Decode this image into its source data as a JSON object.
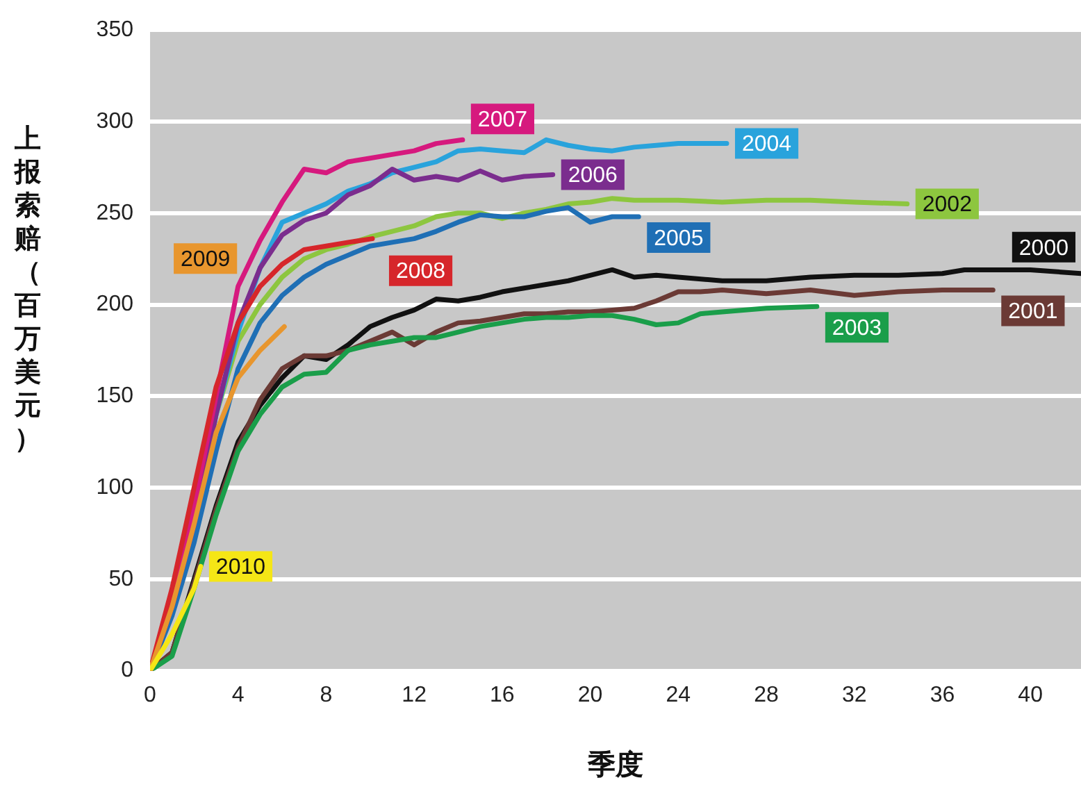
{
  "chart_data": {
    "type": "line",
    "xlabel": "季度",
    "ylabel": "上报索赔（百万美元）",
    "xlim": [
      0,
      42.3
    ],
    "xticks": [
      0,
      4,
      8,
      12,
      16,
      20,
      24,
      28,
      32,
      36,
      40
    ],
    "ylim": [
      0,
      350
    ],
    "yticks": [
      0,
      50,
      100,
      150,
      200,
      250,
      300,
      350
    ],
    "grid": "y",
    "line_style": "solid",
    "series": [
      {
        "name": "2000",
        "color": "#111111",
        "x": [
          0,
          1,
          2,
          3,
          4,
          5,
          6,
          7,
          8,
          9,
          10,
          11,
          12,
          13,
          14,
          15,
          16,
          17,
          18,
          19,
          20,
          21,
          22,
          23,
          24,
          26,
          28,
          30,
          32,
          34,
          36,
          37,
          38,
          40,
          42.3
        ],
        "values": [
          0,
          10,
          50,
          90,
          125,
          145,
          160,
          172,
          170,
          178,
          188,
          193,
          197,
          203,
          202,
          204,
          207,
          209,
          211,
          213,
          216,
          219,
          215,
          216,
          215,
          213,
          213,
          215,
          216,
          216,
          217,
          219,
          219,
          219,
          217
        ]
      },
      {
        "name": "2001",
        "color": "#6b3a35",
        "x": [
          0,
          1,
          2,
          3,
          4,
          5,
          6,
          7,
          8,
          9,
          10,
          11,
          12,
          13,
          14,
          15,
          16,
          17,
          18,
          19,
          20,
          21,
          22,
          23,
          24,
          25,
          26,
          28,
          30,
          32,
          34,
          36,
          38.3
        ],
        "values": [
          0,
          10,
          48,
          88,
          122,
          148,
          165,
          172,
          172,
          175,
          180,
          185,
          178,
          185,
          190,
          191,
          193,
          195,
          195,
          196,
          196,
          197,
          198,
          202,
          207,
          207,
          208,
          206,
          208,
          205,
          207,
          208,
          208
        ]
      },
      {
        "name": "2002",
        "color": "#8dc63f",
        "x": [
          0,
          1,
          2,
          3,
          4,
          5,
          6,
          7,
          8,
          9,
          10,
          11,
          12,
          13,
          14,
          15,
          16,
          17,
          18,
          19,
          20,
          21,
          22,
          24,
          26,
          28,
          30,
          32,
          34.4
        ],
        "values": [
          0,
          35,
          80,
          140,
          180,
          200,
          215,
          225,
          230,
          233,
          237,
          240,
          243,
          248,
          250,
          250,
          247,
          250,
          252,
          255,
          256,
          258,
          257,
          257,
          256,
          257,
          257,
          256,
          255
        ]
      },
      {
        "name": "2003",
        "color": "#1a9e4a",
        "x": [
          0,
          1,
          2,
          3,
          4,
          5,
          6,
          7,
          8,
          9,
          10,
          11,
          12,
          13,
          14,
          15,
          16,
          17,
          18,
          19,
          20,
          21,
          22,
          23,
          24,
          25,
          26,
          28,
          30.3
        ],
        "values": [
          0,
          8,
          45,
          85,
          120,
          140,
          155,
          162,
          163,
          175,
          178,
          180,
          182,
          182,
          185,
          188,
          190,
          192,
          193,
          193,
          194,
          194,
          192,
          189,
          190,
          195,
          196,
          198,
          199
        ]
      },
      {
        "name": "2004",
        "color": "#29a3dc",
        "x": [
          0,
          1,
          2,
          3,
          4,
          5,
          6,
          7,
          8,
          9,
          10,
          11,
          12,
          13,
          14,
          15,
          16,
          17,
          18,
          19,
          20,
          21,
          22,
          23,
          24,
          25,
          26.2
        ],
        "values": [
          0,
          35,
          80,
          140,
          185,
          220,
          245,
          250,
          255,
          262,
          266,
          272,
          275,
          278,
          284,
          285,
          284,
          283,
          290,
          287,
          285,
          284,
          286,
          287,
          288,
          288,
          288
        ]
      },
      {
        "name": "2005",
        "color": "#1f6fb5",
        "x": [
          0,
          1,
          2,
          3,
          4,
          5,
          6,
          7,
          8,
          9,
          10,
          11,
          12,
          13,
          14,
          15,
          16,
          17,
          18,
          19,
          20,
          21,
          22.2
        ],
        "values": [
          0,
          30,
          70,
          120,
          165,
          190,
          205,
          215,
          222,
          227,
          232,
          234,
          236,
          240,
          245,
          249,
          248,
          248,
          251,
          253,
          245,
          248,
          248
        ]
      },
      {
        "name": "2006",
        "color": "#7b2d8e",
        "x": [
          0,
          1,
          2,
          3,
          4,
          5,
          6,
          7,
          8,
          9,
          10,
          11,
          12,
          13,
          14,
          15,
          16,
          17,
          18.3
        ],
        "values": [
          0,
          35,
          80,
          140,
          190,
          220,
          238,
          246,
          250,
          260,
          265,
          274,
          268,
          270,
          268,
          273,
          268,
          270,
          271
        ]
      },
      {
        "name": "2007",
        "color": "#d6197e",
        "x": [
          0,
          1,
          2,
          3,
          4,
          5,
          6,
          7,
          8,
          9,
          10,
          11,
          12,
          13,
          14.2
        ],
        "values": [
          0,
          40,
          90,
          150,
          210,
          235,
          256,
          274,
          272,
          278,
          280,
          282,
          284,
          288,
          290
        ]
      },
      {
        "name": "2008",
        "color": "#d6262b",
        "x": [
          0,
          1,
          2,
          3,
          4,
          5,
          6,
          7,
          8,
          9,
          10.1
        ],
        "values": [
          0,
          45,
          100,
          155,
          190,
          210,
          222,
          230,
          232,
          234,
          236
        ]
      },
      {
        "name": "2009",
        "color": "#e8962e",
        "x": [
          0,
          1,
          2,
          3,
          4,
          5,
          6.1
        ],
        "values": [
          0,
          35,
          80,
          130,
          160,
          175,
          188
        ]
      },
      {
        "name": "2010",
        "color": "#f5e616",
        "x": [
          0,
          1,
          2,
          2.3
        ],
        "values": [
          0,
          20,
          45,
          57
        ]
      }
    ]
  }
}
